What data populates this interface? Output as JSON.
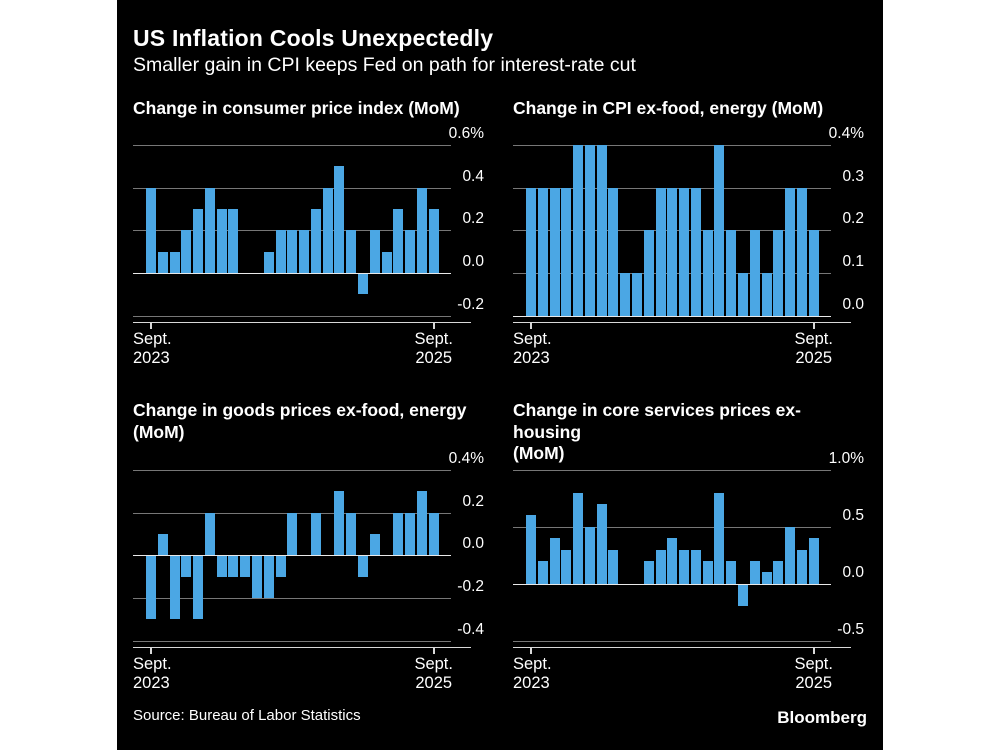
{
  "header": {
    "title": "US Inflation Cools Unexpectedly",
    "subtitle": "Smaller gain in CPI keeps Fed on path for interest-rate cut"
  },
  "footer": {
    "source": "Source: Bureau of Labor Statistics",
    "brand": "Bloomberg"
  },
  "colors": {
    "background": "#000000",
    "page_margin": "#ffffff",
    "bar": "#4BA7E4",
    "text": "#ffffff",
    "gridline": "#777777",
    "zero_line": "#e9e9e9",
    "axis_line": "#d9d9d9"
  },
  "chart_data": [
    {
      "type": "bar",
      "title_lines": [
        "Change in consumer price index (MoM)"
      ],
      "ylim": [
        -0.2,
        0.6
      ],
      "yticks": [
        {
          "v": 0.6,
          "label": "0.6%"
        },
        {
          "v": 0.4,
          "label": "0.4"
        },
        {
          "v": 0.2,
          "label": "0.2"
        },
        {
          "v": 0.0,
          "label": "0.0"
        },
        {
          "v": -0.2,
          "label": "-0.2"
        }
      ],
      "xticks": [
        [
          "Sept.",
          "2023"
        ],
        [
          "Sept.",
          "2025"
        ]
      ],
      "x_range": "Sept. 2023 - Sept. 2025, monthly",
      "values": [
        0.4,
        0.1,
        0.1,
        0.2,
        0.3,
        0.4,
        0.3,
        0.3,
        0.0,
        0.0,
        0.1,
        0.2,
        0.2,
        0.2,
        0.3,
        0.4,
        0.5,
        0.2,
        -0.1,
        0.2,
        0.1,
        0.3,
        0.2,
        0.4,
        0.3
      ]
    },
    {
      "type": "bar",
      "title_lines": [
        "Change in CPI ex-food, energy (MoM)"
      ],
      "ylim": [
        0.0,
        0.4
      ],
      "yticks": [
        {
          "v": 0.4,
          "label": "0.4%"
        },
        {
          "v": 0.3,
          "label": "0.3"
        },
        {
          "v": 0.2,
          "label": "0.2"
        },
        {
          "v": 0.1,
          "label": "0.1"
        },
        {
          "v": 0.0,
          "label": "0.0"
        }
      ],
      "xticks": [
        [
          "Sept.",
          "2023"
        ],
        [
          "Sept.",
          "2025"
        ]
      ],
      "x_range": "Sept. 2023 - Sept. 2025, monthly",
      "values": [
        0.3,
        0.3,
        0.3,
        0.3,
        0.4,
        0.4,
        0.4,
        0.3,
        0.1,
        0.1,
        0.2,
        0.3,
        0.3,
        0.3,
        0.3,
        0.2,
        0.4,
        0.2,
        0.1,
        0.2,
        0.1,
        0.2,
        0.3,
        0.3,
        0.2
      ]
    },
    {
      "type": "bar",
      "title_lines": [
        "Change in goods prices ex-food, energy",
        "(MoM)"
      ],
      "ylim": [
        -0.4,
        0.4
      ],
      "yticks": [
        {
          "v": 0.4,
          "label": "0.4%"
        },
        {
          "v": 0.2,
          "label": "0.2"
        },
        {
          "v": 0.0,
          "label": "0.0"
        },
        {
          "v": -0.2,
          "label": "-0.2"
        },
        {
          "v": -0.4,
          "label": "-0.4"
        }
      ],
      "xticks": [
        [
          "Sept.",
          "2023"
        ],
        [
          "Sept.",
          "2025"
        ]
      ],
      "x_range": "Sept. 2023 - Sept. 2025, monthly",
      "values": [
        -0.3,
        0.1,
        -0.3,
        -0.1,
        -0.3,
        0.2,
        -0.1,
        -0.1,
        -0.1,
        -0.2,
        -0.2,
        -0.1,
        0.2,
        0.0,
        0.2,
        0.0,
        0.3,
        0.2,
        -0.1,
        0.1,
        0.0,
        0.2,
        0.2,
        0.3,
        0.2
      ]
    },
    {
      "type": "bar",
      "title_lines": [
        "Change in core services prices ex-housing",
        "(MoM)"
      ],
      "ylim": [
        -0.5,
        1.0
      ],
      "yticks": [
        {
          "v": 1.0,
          "label": "1.0%"
        },
        {
          "v": 0.5,
          "label": "0.5"
        },
        {
          "v": 0.0,
          "label": "0.0"
        },
        {
          "v": -0.5,
          "label": "-0.5"
        }
      ],
      "xticks": [
        [
          "Sept.",
          "2023"
        ],
        [
          "Sept.",
          "2025"
        ]
      ],
      "x_range": "Sept. 2023 - Sept. 2025, monthly",
      "values": [
        0.6,
        0.2,
        0.4,
        0.3,
        0.8,
        0.5,
        0.7,
        0.3,
        0.0,
        0.0,
        0.2,
        0.3,
        0.4,
        0.3,
        0.3,
        0.2,
        0.8,
        0.2,
        -0.2,
        0.2,
        0.1,
        0.2,
        0.5,
        0.3,
        0.4
      ]
    }
  ]
}
